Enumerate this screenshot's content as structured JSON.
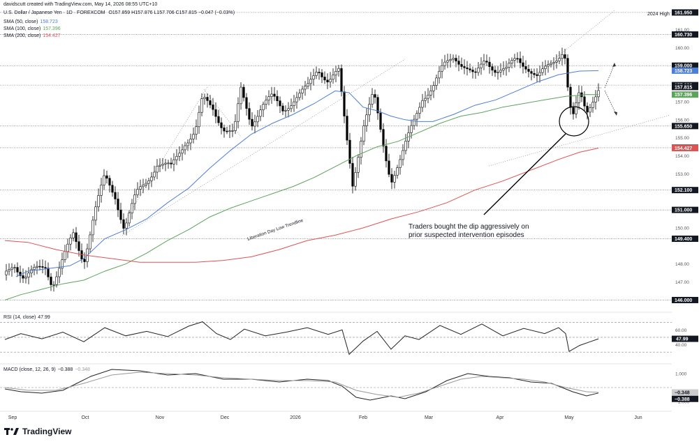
{
  "header": {
    "created_by": "davidscutt created with TradingView.com, May 14, 2026 08:55 UTC+10",
    "symbol": "U.S. Dollar / Japanese Yen · 1D · FOREXCOM",
    "ohlc": "O157.859 H157.876 L157.706 C157.815 −0.047 (−0.03%)"
  },
  "indicators": [
    {
      "label": "SMA (50, close)",
      "value": "158.723",
      "color": "#4c7ed6"
    },
    {
      "label": "SMA (100, close)",
      "value": "157.396",
      "color": "#5ba35b"
    },
    {
      "label": "SMA (200, close)",
      "value": "154.427",
      "color": "#e05252"
    }
  ],
  "brand": "TradingView",
  "chart_data": [
    {
      "type": "line",
      "title": "U.S. Dollar / Japanese Yen · 1D · FOREXCOM",
      "x_ticks": [
        "Sep",
        "Oct",
        "Nov",
        "Dec",
        "2026",
        "Feb",
        "Mar",
        "Apr",
        "May",
        "Jun"
      ],
      "y_ticks": [
        147,
        148,
        150,
        153,
        154,
        155,
        156,
        157,
        158,
        160,
        161
      ],
      "ylim": [
        145.4,
        162.1
      ],
      "series": [
        {
          "name": "SMA (50, close)",
          "color": "#4c7ed6",
          "x": [
            23,
            40,
            60,
            80,
            100,
            120,
            150,
            180,
            210,
            240,
            270,
            300,
            330,
            360,
            390,
            420,
            450,
            480,
            500,
            520,
            540,
            560,
            580,
            600,
            620,
            650,
            680,
            710,
            740,
            770,
            800,
            830,
            857
          ],
          "values": [
            147.3,
            147.6,
            147.7,
            147.8,
            147.9,
            148.3,
            149.4,
            149.9,
            150.5,
            151.4,
            152.2,
            153.3,
            154.3,
            155.2,
            155.8,
            156.3,
            156.9,
            157.6,
            157.5,
            156.7,
            156.5,
            156.2,
            156.0,
            155.9,
            155.9,
            156.3,
            156.8,
            157.1,
            157.6,
            158.1,
            158.5,
            158.7,
            158.723
          ]
        },
        {
          "name": "SMA (100, close)",
          "color": "#5ba35b",
          "x": [
            7,
            30,
            60,
            90,
            120,
            150,
            180,
            210,
            240,
            270,
            300,
            330,
            360,
            390,
            420,
            450,
            480,
            510,
            540,
            570,
            600,
            630,
            660,
            690,
            720,
            750,
            780,
            810,
            840,
            857
          ],
          "values": [
            146.0,
            146.3,
            146.6,
            146.9,
            147.1,
            147.6,
            148.0,
            148.6,
            149.3,
            149.9,
            150.6,
            151.1,
            151.5,
            151.9,
            152.3,
            152.8,
            153.4,
            154.0,
            154.5,
            154.8,
            155.3,
            155.8,
            156.2,
            156.4,
            156.7,
            156.9,
            157.1,
            157.3,
            157.4,
            157.396
          ]
        },
        {
          "name": "SMA (200, close)",
          "color": "#e05252",
          "x": [
            7,
            40,
            80,
            120,
            160,
            200,
            240,
            280,
            320,
            360,
            400,
            440,
            480,
            520,
            560,
            600,
            640,
            680,
            720,
            760,
            800,
            830,
            857
          ],
          "values": [
            149.3,
            149.2,
            148.8,
            148.5,
            148.3,
            148.1,
            148.1,
            148.1,
            148.2,
            148.4,
            148.8,
            149.3,
            149.6,
            150.0,
            150.5,
            150.9,
            151.4,
            152.1,
            152.6,
            153.2,
            153.8,
            154.2,
            154.427
          ]
        }
      ],
      "price_labels": [
        {
          "value": "161.950",
          "style": "dark"
        },
        {
          "value": "160.730",
          "style": "dark"
        },
        {
          "value": "159.000",
          "style": "dark"
        },
        {
          "value": "158.723",
          "style": "blue"
        },
        {
          "value": "157.920",
          "style": "dark"
        },
        {
          "value": "157.815",
          "style": "dark"
        },
        {
          "value": "157.396",
          "style": "green"
        },
        {
          "value": "155.650",
          "style": "dark"
        },
        {
          "value": "154.450",
          "style": "dark"
        },
        {
          "value": "154.427",
          "style": "red"
        },
        {
          "value": "152.100",
          "style": "dark"
        },
        {
          "value": "151.000",
          "style": "dark"
        },
        {
          "value": "149.400",
          "style": "dark"
        },
        {
          "value": "146.000",
          "style": "dark"
        }
      ],
      "annotations": [
        "2024 High",
        "Liberation Day Low Trendline",
        "Traders bought the dip aggressively on",
        "prior suspected intervention episodes"
      ]
    },
    {
      "type": "line",
      "title": "RSI (14, close)",
      "value": "47.99",
      "y_ticks": [
        60.0,
        40.0
      ],
      "ylim": [
        18,
        80
      ],
      "series": [
        {
          "name": "RSI (14, close)",
          "color": "#222222",
          "x": [
            7,
            30,
            60,
            90,
            120,
            150,
            180,
            210,
            240,
            270,
            290,
            310,
            330,
            350,
            380,
            410,
            440,
            470,
            490,
            500,
            520,
            540,
            560,
            580,
            600,
            630,
            660,
            690,
            720,
            750,
            780,
            800,
            810,
            815,
            830,
            845,
            857
          ],
          "values": [
            47,
            55,
            48,
            57,
            44,
            63,
            52,
            58,
            51,
            65,
            71,
            55,
            47,
            61,
            52,
            57,
            63,
            54,
            60,
            27,
            45,
            58,
            34,
            52,
            47,
            66,
            54,
            68,
            52,
            62,
            55,
            63,
            55,
            31,
            39,
            44,
            47.99
          ]
        }
      ]
    },
    {
      "type": "line",
      "title": "MACD (close, 12, 26, 9)",
      "value": "−0.388",
      "signal": "−0.348",
      "y_ticks": [
        1.0,
        -1.0
      ],
      "ylim": [
        -1.6,
        1.6
      ],
      "series": [
        {
          "name": "MACD",
          "color": "#222222",
          "x": [
            7,
            30,
            60,
            90,
            110,
            130,
            160,
            200,
            240,
            280,
            320,
            360,
            400,
            440,
            470,
            490,
            510,
            530,
            560,
            580,
            610,
            640,
            670,
            700,
            730,
            760,
            790,
            820,
            840,
            857
          ],
          "values": [
            -0.1,
            -0.3,
            -0.4,
            -0.2,
            0.3,
            0.8,
            1.3,
            1.2,
            0.9,
            1.0,
            0.6,
            0.6,
            0.4,
            0.6,
            0.5,
            0.1,
            -0.7,
            -0.9,
            -0.6,
            -0.8,
            -0.3,
            0.5,
            1.0,
            0.8,
            0.7,
            0.4,
            0.3,
            -0.3,
            -0.6,
            -0.388
          ]
        },
        {
          "name": "Signal",
          "color": "#999999",
          "x": [
            7,
            40,
            80,
            120,
            160,
            200,
            240,
            280,
            320,
            360,
            400,
            440,
            480,
            510,
            540,
            570,
            600,
            630,
            660,
            690,
            720,
            750,
            780,
            810,
            840,
            857
          ],
          "values": [
            0.0,
            -0.2,
            -0.2,
            0.3,
            0.9,
            1.1,
            1.0,
            0.9,
            0.7,
            0.6,
            0.5,
            0.5,
            0.4,
            -0.2,
            -0.5,
            -0.7,
            -0.4,
            0.1,
            0.6,
            0.8,
            0.7,
            0.6,
            0.4,
            0.0,
            -0.3,
            -0.348
          ]
        }
      ]
    }
  ]
}
